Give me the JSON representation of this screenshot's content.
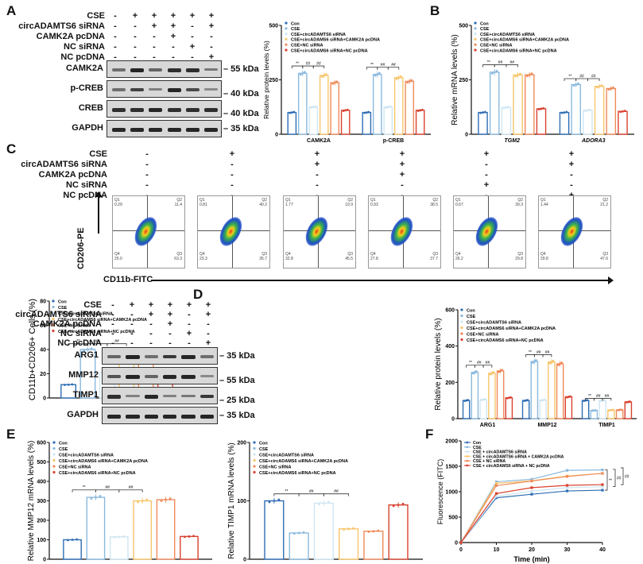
{
  "legend_groups": [
    "Con",
    "CSE",
    "CSE+circADAMTS6 siRNA",
    "CSE+circADAMS6 siRNA+CAMK2A pcDNA",
    "CSE+NC siRNA",
    "CSE+circADAMS6 siRNA+NC pcDNA"
  ],
  "group_colors": [
    "#2e6db4",
    "#8ab9de",
    "#cfe6f2",
    "#f7c56a",
    "#f08a5a",
    "#d9412f"
  ],
  "treatments": {
    "rows": [
      "CSE",
      "circADAMTS6 siRNA",
      "CAMK2A pcDNA",
      "NC siRNA",
      "NC pcDNA"
    ],
    "signs": [
      [
        "-",
        "+",
        "+",
        "+",
        "+",
        "+"
      ],
      [
        "-",
        "-",
        "+",
        "+",
        "-",
        "+"
      ],
      [
        "-",
        "-",
        "-",
        "+",
        "-",
        "-"
      ],
      [
        "-",
        "-",
        "-",
        "-",
        "+",
        "-"
      ],
      [
        "-",
        "-",
        "-",
        "-",
        "-",
        "+"
      ]
    ]
  },
  "panelA": {
    "letter": "A",
    "blots": [
      {
        "name": "CAMK2A",
        "kda": "55 kDa",
        "intensity": [
          0.5,
          0.9,
          0.55,
          0.85,
          0.85,
          0.45
        ]
      },
      {
        "name": "p-CREB",
        "kda": "40 kDa",
        "intensity": [
          0.5,
          0.75,
          0.4,
          0.9,
          0.7,
          0.35
        ]
      },
      {
        "name": "CREB",
        "kda": "40 kDa",
        "intensity": [
          0.85,
          0.85,
          0.9,
          0.85,
          0.85,
          0.85
        ]
      },
      {
        "name": "GAPDH",
        "kda": "35 kDa",
        "intensity": [
          0.9,
          0.9,
          0.9,
          0.9,
          0.9,
          0.9
        ]
      }
    ]
  },
  "panelB": {
    "letter": "B"
  },
  "panelC": {
    "letter": "C",
    "y_axis_label": "CD206-PE",
    "x_axis_label": "CD11b-FITC",
    "plots": [
      {
        "q1": "0.29",
        "q2": "11.4",
        "q3": "63.3",
        "q4": "25.0"
      },
      {
        "q1": "0.81",
        "q2": "40.2",
        "q3": "35.7",
        "q4": "23.3"
      },
      {
        "q1": "1.77",
        "q2": "19.9",
        "q3": "45.5",
        "q4": "32.8"
      },
      {
        "q1": "0.93",
        "q2": "38.5",
        "q3": "37.7",
        "q4": "27.8"
      },
      {
        "q1": "0.67",
        "q2": "39.3",
        "q3": "29.8",
        "q4": "26.2"
      },
      {
        "q1": "1.44",
        "q2": "21.2",
        "q3": "47.6",
        "q4": "29.8"
      }
    ],
    "quadrant_names": [
      "Q1",
      "Q2",
      "Q3",
      "Q4"
    ]
  },
  "panelD": {
    "letter": "D",
    "blots": [
      {
        "name": "ARG1",
        "kda": "35 kDa",
        "intensity": [
          0.55,
          0.9,
          0.5,
          0.8,
          0.9,
          0.5
        ]
      },
      {
        "name": "MMP12",
        "kda": "55 kDa",
        "intensity": [
          0.65,
          0.9,
          0.55,
          0.9,
          0.9,
          0.35
        ]
      },
      {
        "name": "TIMP1",
        "kda": "25 kDa",
        "intensity": [
          0.85,
          0.4,
          0.9,
          0.4,
          0.45,
          0.8
        ]
      },
      {
        "name": "GAPDH",
        "kda": "35 kDa",
        "intensity": [
          0.9,
          0.9,
          0.9,
          0.9,
          0.9,
          0.9
        ]
      }
    ]
  },
  "panelE": {
    "letter": "E"
  },
  "panelF": {
    "letter": "F"
  },
  "chart_data": [
    {
      "id": "A-bar",
      "type": "bar",
      "ylabel": "Relative protein levels (%)",
      "categories": [
        "CAMK2A",
        "p-CREB"
      ],
      "ylim": [
        0,
        500
      ],
      "yticks": [
        0,
        250,
        500
      ],
      "series": [
        {
          "name": "Con",
          "values": [
            100,
            100
          ]
        },
        {
          "name": "CSE",
          "values": [
            280,
            275
          ]
        },
        {
          "name": "CSE+circADAMTS6 siRNA",
          "values": [
            125,
            125
          ]
        },
        {
          "name": "CSE+circADAMS6 siRNA+CAMK2A pcDNA",
          "values": [
            270,
            260
          ]
        },
        {
          "name": "CSE+NC siRNA",
          "values": [
            237,
            243
          ]
        },
        {
          "name": "CSE+circADAMS6 siRNA+NC pcDNA",
          "values": [
            110,
            110
          ]
        }
      ],
      "annotations": [
        "**",
        "##",
        "##"
      ],
      "legend": "top-left"
    },
    {
      "id": "B-bar",
      "type": "bar",
      "ylabel": "Relative mRNA levels (%)",
      "categories": [
        "TGM2",
        "ADORA3"
      ],
      "ylim": [
        0,
        500
      ],
      "yticks": [
        0,
        250,
        500
      ],
      "series": [
        {
          "name": "Con",
          "values": [
            100,
            100
          ]
        },
        {
          "name": "CSE",
          "values": [
            285,
            228
          ]
        },
        {
          "name": "CSE+circADAMTS6 siRNA",
          "values": [
            123,
            110
          ]
        },
        {
          "name": "CSE+circADAMS6 siRNA+CAMK2A pcDNA",
          "values": [
            272,
            220
          ]
        },
        {
          "name": "CSE+NC siRNA",
          "values": [
            273,
            210
          ]
        },
        {
          "name": "CSE+circADAMS6 siRNA+NC pcDNA",
          "values": [
            117,
            105
          ]
        }
      ],
      "annotations": [
        "**",
        "##",
        "##"
      ],
      "legend": "top-left"
    },
    {
      "id": "C-bar",
      "type": "bar",
      "ylabel": "CD11b+CD206+ Cells (%)",
      "categories": [
        "Con",
        "CSE",
        "CSE+circADAMTS6 siRNA",
        "CSE+circADAMS6 siRNA+CAMK2A pcDNA",
        "CSE+NC siRNA",
        "CSE+circADAMS6 siRNA+NC pcDNA"
      ],
      "ylim": [
        0,
        80
      ],
      "yticks": [
        0,
        20,
        40,
        60,
        80
      ],
      "values": [
        11,
        40,
        21,
        38,
        39,
        21.5
      ],
      "annotations": [
        "**",
        "##",
        "##"
      ],
      "legend": "top-left"
    },
    {
      "id": "D-bar",
      "type": "bar",
      "ylabel": "Relative protein levels (%)",
      "categories": [
        "ARG1",
        "MMP12",
        "TIMP1"
      ],
      "ylim": [
        0,
        600
      ],
      "yticks": [
        0,
        200,
        400,
        600
      ],
      "series": [
        {
          "name": "Con",
          "values": [
            100,
            100,
            100
          ]
        },
        {
          "name": "CSE",
          "values": [
            255,
            315,
            45
          ]
        },
        {
          "name": "CSE+circADAMTS6 siRNA",
          "values": [
            105,
            102,
            100
          ]
        },
        {
          "name": "CSE+circADAMS6 siRNA+CAMK2A pcDNA",
          "values": [
            250,
            312,
            47
          ]
        },
        {
          "name": "CSE+NC siRNA",
          "values": [
            263,
            302,
            48
          ]
        },
        {
          "name": "CSE+circADAMS6 siRNA+NC pcDNA",
          "values": [
            115,
            120,
            92
          ]
        }
      ],
      "annotations": [
        "**",
        "##",
        "##"
      ],
      "legend": "top-left"
    },
    {
      "id": "E1-bar",
      "type": "bar",
      "ylabel": "Relative MMP12 mRNA levels (%)",
      "categories": [
        "Con",
        "CSE",
        "CSE+circADAMTS6 siRNA",
        "CSE+circADAMS6 siRNA+CAMK2A pcDNA",
        "CSE+NC siRNA",
        "CSE+circADAMS6 siRNA+NC pcDNA"
      ],
      "ylim": [
        0,
        600
      ],
      "yticks": [
        0,
        100,
        200,
        300,
        400,
        500,
        600
      ],
      "values": [
        100,
        318,
        115,
        300,
        306,
        117
      ],
      "annotations": [
        "**",
        "##",
        "##"
      ],
      "legend": "top-left"
    },
    {
      "id": "E2-bar",
      "type": "bar",
      "ylabel": "Relative TIMP1 mRNA levels (%)",
      "categories": [
        "Con",
        "CSE",
        "CSE+circADAMTS6 siRNA",
        "CSE+circADAMS6 siRNA+CAMK2A pcDNA",
        "CSE+NC siRNA",
        "CSE+circADAMS6 siRNA+NC pcDNA"
      ],
      "ylim": [
        0,
        200
      ],
      "yticks": [
        0,
        100,
        200
      ],
      "values": [
        100,
        45,
        96,
        52,
        48,
        93
      ],
      "annotations": [
        "**",
        "##",
        "##"
      ],
      "legend": "top-left"
    },
    {
      "id": "F-line",
      "type": "line",
      "xlabel": "Time (min)",
      "ylabel": "Fluorescence (FITC)",
      "x": [
        0,
        10,
        20,
        30,
        40
      ],
      "xlim": [
        0,
        40
      ],
      "ylim": [
        0,
        2000
      ],
      "xticks": [
        0,
        10,
        20,
        30,
        40
      ],
      "yticks": [
        0,
        500,
        1000,
        1500,
        2000
      ],
      "series": [
        {
          "name": "Con",
          "values": [
            0,
            880,
            950,
            1015,
            1030
          ]
        },
        {
          "name": "CSE",
          "values": [
            0,
            1195,
            1245,
            1420,
            1430
          ]
        },
        {
          "name": "CSE + circADAMTS6 siRNA",
          "values": [
            0,
            910,
            1010,
            1080,
            1100
          ]
        },
        {
          "name": "CSE + circADAMTS6 siRNA + CAMK2A pcDNA",
          "values": [
            0,
            1165,
            1215,
            1310,
            1360
          ]
        },
        {
          "name": "CSE + NC siRNA",
          "values": [
            0,
            1120,
            1210,
            1300,
            1360
          ]
        },
        {
          "name": "CSE + circADAMS6 siRNA + NC pcDNA",
          "values": [
            0,
            965,
            1080,
            1125,
            1140
          ]
        }
      ],
      "annotations": [
        "**",
        "##",
        "##"
      ],
      "legend": "top-left"
    }
  ]
}
